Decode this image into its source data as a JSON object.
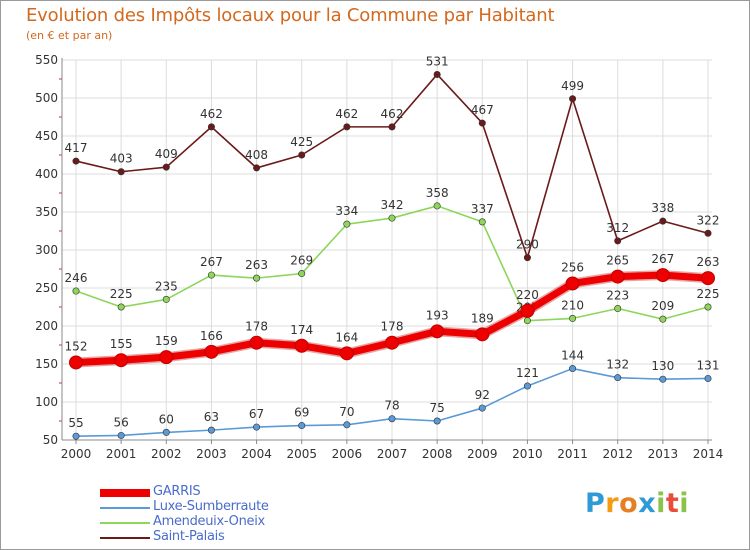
{
  "header": {
    "title": "Evolution des Impôts locaux pour la Commune par Habitant",
    "subtitle": "(en € et par an)"
  },
  "logo": {
    "letters": [
      "P",
      "r",
      "o",
      "x",
      "i",
      "t",
      "i"
    ],
    "colors": [
      "#2f9bd6",
      "#f39c12",
      "#e67e22",
      "#2f9bd6",
      "#8bc34a",
      "#e74c3c",
      "#8bc34a"
    ]
  },
  "chart_data": {
    "type": "line",
    "title": "Evolution des Impôts locaux pour la Commune par Habitant",
    "subtitle": "(en € et par an)",
    "xlabel": "",
    "ylabel": "",
    "x": [
      "2000",
      "2001",
      "2002",
      "2003",
      "2004",
      "2005",
      "2006",
      "2007",
      "2008",
      "2009",
      "2010",
      "2011",
      "2012",
      "2013",
      "2014"
    ],
    "ylim": [
      50,
      550
    ],
    "yticks": [
      "50",
      "100",
      "150",
      "200",
      "250",
      "300",
      "350",
      "400",
      "450",
      "500",
      "550"
    ],
    "grid": true,
    "legend_position": "bottom-left",
    "series": [
      {
        "name": "Saint-Palais",
        "color": "#6b1a1a",
        "values": [
          417,
          403,
          409,
          462,
          408,
          425,
          462,
          462,
          531,
          467,
          290,
          499,
          312,
          338,
          322
        ]
      },
      {
        "name": "Amendeuix-Oneix",
        "color": "#8ed65a",
        "values": [
          246,
          225,
          235,
          267,
          263,
          269,
          334,
          342,
          358,
          337,
          207,
          210,
          223,
          209,
          225
        ]
      },
      {
        "name": "Luxe-Sumberraute",
        "color": "#5a9ad6",
        "values": [
          55,
          56,
          60,
          63,
          67,
          69,
          70,
          78,
          75,
          92,
          121,
          144,
          132,
          130,
          131
        ]
      },
      {
        "name": "GARRIS",
        "color": "#ee0000",
        "values": [
          152,
          155,
          159,
          166,
          178,
          174,
          164,
          178,
          193,
          189,
          220,
          256,
          265,
          267,
          263
        ]
      }
    ],
    "legend_order": [
      "GARRIS",
      "Luxe-Sumberraute",
      "Amendeuix-Oneix",
      "Saint-Palais"
    ]
  }
}
